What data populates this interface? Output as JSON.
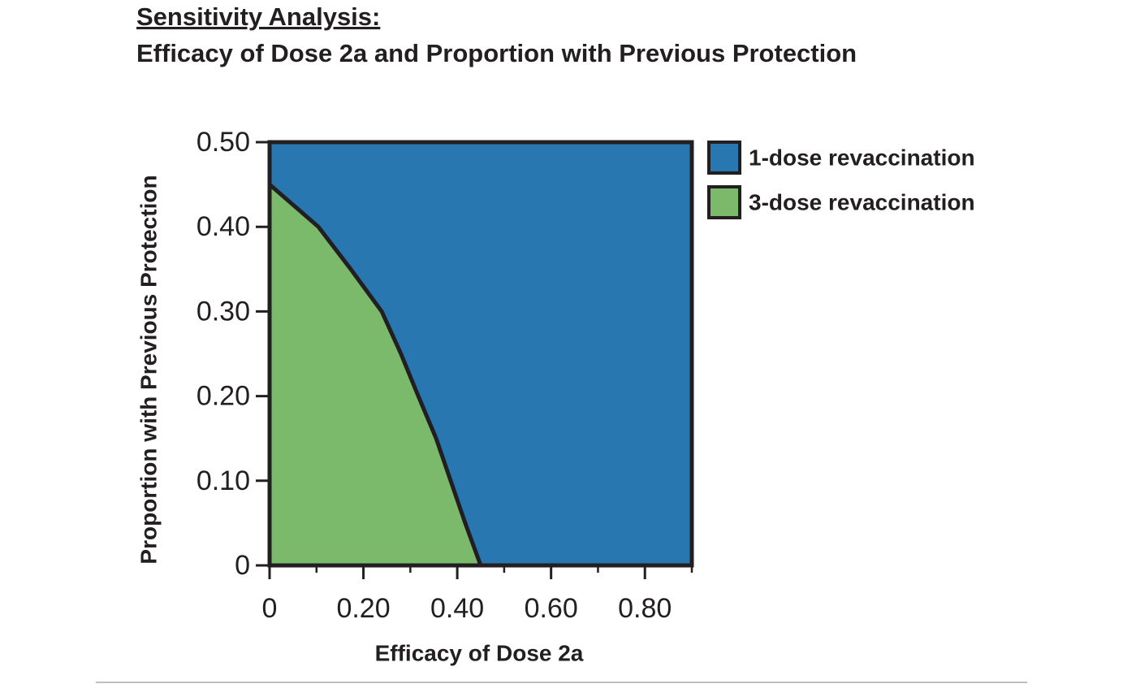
{
  "chart_data": {
    "type": "area",
    "title": "Sensitivity Analysis:",
    "subtitle": "Efficacy of Dose 2a and Proportion with Previous Protection",
    "x_label": "Efficacy of Dose 2a",
    "y_label": "Proportion with Previous Protection",
    "xlim": [
      0,
      0.9
    ],
    "ylim": [
      0,
      0.5
    ],
    "xticks": [
      0,
      {
        "value": 0.2,
        "label": "0.20"
      },
      {
        "value": 0.4,
        "label": "0.40"
      },
      {
        "value": 0.6,
        "label": "0.60"
      },
      {
        "value": 0.8,
        "label": "0.80"
      }
    ],
    "xminorticks": [
      0.1,
      0.3,
      0.5,
      0.7,
      0.9
    ],
    "yticks": [
      0,
      {
        "value": 0.1,
        "label": "0.10"
      },
      {
        "value": 0.2,
        "label": "0.20"
      },
      {
        "value": 0.3,
        "label": "0.30"
      },
      {
        "value": 0.4,
        "label": "0.40"
      },
      {
        "value": 0.5,
        "label": "0.50"
      }
    ],
    "legend": "right",
    "series": [
      {
        "name": "1-dose revaccination",
        "color": "#2877b0"
      },
      {
        "name": "3-dose revaccination",
        "color": "#7aba6a",
        "x": [
          0,
          0.104,
          0.173,
          0.239,
          0.28,
          0.317,
          0.355,
          0.386,
          0.417,
          0.45
        ],
        "values": [
          0.45,
          0.4,
          0.35,
          0.3,
          0.25,
          0.2,
          0.15,
          0.1,
          0.05,
          0
        ]
      }
    ]
  }
}
